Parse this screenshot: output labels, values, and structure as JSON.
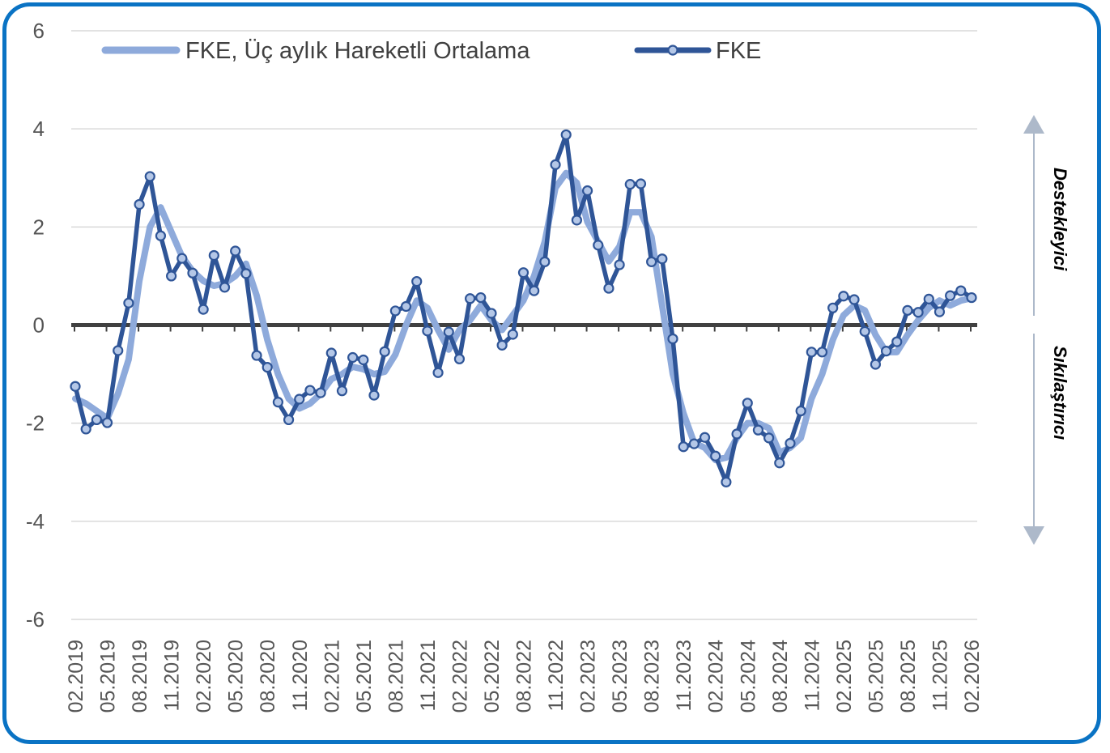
{
  "chart_data": {
    "type": "line",
    "x": [
      "02.2019",
      "03.2019",
      "04.2019",
      "05.2019",
      "06.2019",
      "07.2019",
      "08.2019",
      "09.2019",
      "10.2019",
      "11.2019",
      "12.2019",
      "01.2020",
      "02.2020",
      "03.2020",
      "04.2020",
      "05.2020",
      "06.2020",
      "07.2020",
      "08.2020",
      "09.2020",
      "10.2020",
      "11.2020",
      "12.2020",
      "01.2021",
      "02.2021",
      "03.2021",
      "04.2021",
      "05.2021",
      "06.2021",
      "07.2021",
      "08.2021",
      "09.2021",
      "10.2021",
      "11.2021",
      "12.2021",
      "01.2022",
      "02.2022",
      "03.2022",
      "04.2022",
      "05.2022",
      "06.2022",
      "07.2022",
      "08.2022",
      "09.2022",
      "10.2022",
      "11.2022",
      "12.2022",
      "01.2023",
      "02.2023",
      "03.2023",
      "04.2023",
      "05.2023",
      "06.2023",
      "07.2023",
      "08.2023",
      "09.2023",
      "10.2023",
      "11.2023",
      "12.2023",
      "01.2024",
      "02.2024",
      "03.2024",
      "04.2024",
      "05.2024",
      "06.2024",
      "07.2024",
      "08.2024",
      "09.2024",
      "10.2024",
      "11.2024",
      "12.2024",
      "01.2025",
      "02.2025",
      "03.2025",
      "04.2025",
      "05.2025",
      "06.2025",
      "07.2025",
      "08.2025",
      "09.2025",
      "10.2025",
      "11.2025",
      "12.2025",
      "01.2026",
      "02.2026"
    ],
    "x_tick_labels": [
      "02.2019",
      "05.2019",
      "08.2019",
      "11.2019",
      "02.2020",
      "05.2020",
      "08.2020",
      "11.2020",
      "02.2021",
      "05.2021",
      "08.2021",
      "11.2021",
      "02.2022",
      "05.2022",
      "08.2022",
      "11.2022",
      "02.2023",
      "05.2023",
      "08.2023",
      "11.2023",
      "02.2024",
      "05.2024",
      "08.2024",
      "11.2024",
      "02.2025",
      "05.2025",
      "08.2025",
      "11.2025",
      "02.2026"
    ],
    "series": [
      {
        "name": "FKE, Üç aylık Hareketli Ortalama",
        "color": "#8eaadb",
        "values": [
          -1.5,
          -1.6,
          -1.75,
          -1.9,
          -1.4,
          -0.7,
          0.9,
          2.0,
          2.4,
          1.9,
          1.4,
          1.1,
          0.9,
          0.8,
          0.85,
          1.0,
          1.25,
          0.6,
          -0.3,
          -1.0,
          -1.5,
          -1.7,
          -1.6,
          -1.4,
          -1.1,
          -1.0,
          -0.85,
          -0.9,
          -1.0,
          -0.95,
          -0.6,
          0.0,
          0.5,
          0.35,
          -0.1,
          -0.5,
          -0.1,
          0.1,
          0.4,
          0.1,
          -0.1,
          0.2,
          0.5,
          1.0,
          1.7,
          2.8,
          3.1,
          2.9,
          2.1,
          1.7,
          1.3,
          1.6,
          2.3,
          2.3,
          1.8,
          0.4,
          -1.0,
          -1.8,
          -2.4,
          -2.5,
          -2.75,
          -2.7,
          -2.3,
          -2.0,
          -2.0,
          -2.1,
          -2.6,
          -2.5,
          -2.3,
          -1.5,
          -1.0,
          -0.3,
          0.2,
          0.4,
          0.3,
          -0.2,
          -0.55,
          -0.55,
          -0.2,
          0.1,
          0.35,
          0.5,
          0.4,
          0.5,
          0.55
        ]
      },
      {
        "name": "FKE",
        "color": "#2f5597",
        "values": [
          -1.25,
          -2.12,
          -1.93,
          -1.99,
          -0.52,
          0.45,
          2.46,
          3.03,
          1.82,
          1.0,
          1.36,
          1.06,
          0.32,
          1.42,
          0.77,
          1.51,
          1.05,
          -0.62,
          -0.86,
          -1.57,
          -1.93,
          -1.51,
          -1.33,
          -1.38,
          -0.57,
          -1.34,
          -0.66,
          -0.71,
          -1.43,
          -0.54,
          0.29,
          0.38,
          0.89,
          -0.12,
          -0.97,
          -0.14,
          -0.69,
          0.54,
          0.56,
          0.24,
          -0.41,
          -0.19,
          1.07,
          0.7,
          1.29,
          3.27,
          3.88,
          2.14,
          2.74,
          1.63,
          0.75,
          1.23,
          2.87,
          2.88,
          1.29,
          1.35,
          -0.28,
          -2.48,
          -2.42,
          -2.29,
          -2.67,
          -3.2,
          -2.22,
          -1.59,
          -2.14,
          -2.3,
          -2.81,
          -2.41,
          -1.75,
          -0.55,
          -0.55,
          0.35,
          0.59,
          0.52,
          -0.13,
          -0.8,
          -0.53,
          -0.34,
          0.3,
          0.26,
          0.53,
          0.27,
          0.6,
          0.7,
          0.56
        ]
      }
    ],
    "ylim": [
      -6,
      6
    ],
    "y_ticks": [
      6,
      4,
      2,
      0,
      -2,
      -4,
      -6
    ],
    "grid": true,
    "legend": "top",
    "side_labels": {
      "upper": "Destekleyici",
      "lower": "Sıkılaştırıcı"
    },
    "colors": {
      "frame": "#0a73c4",
      "arrow": "#adb9ca",
      "grid": "#d9d9d9",
      "zero_axis": "#404040"
    }
  }
}
